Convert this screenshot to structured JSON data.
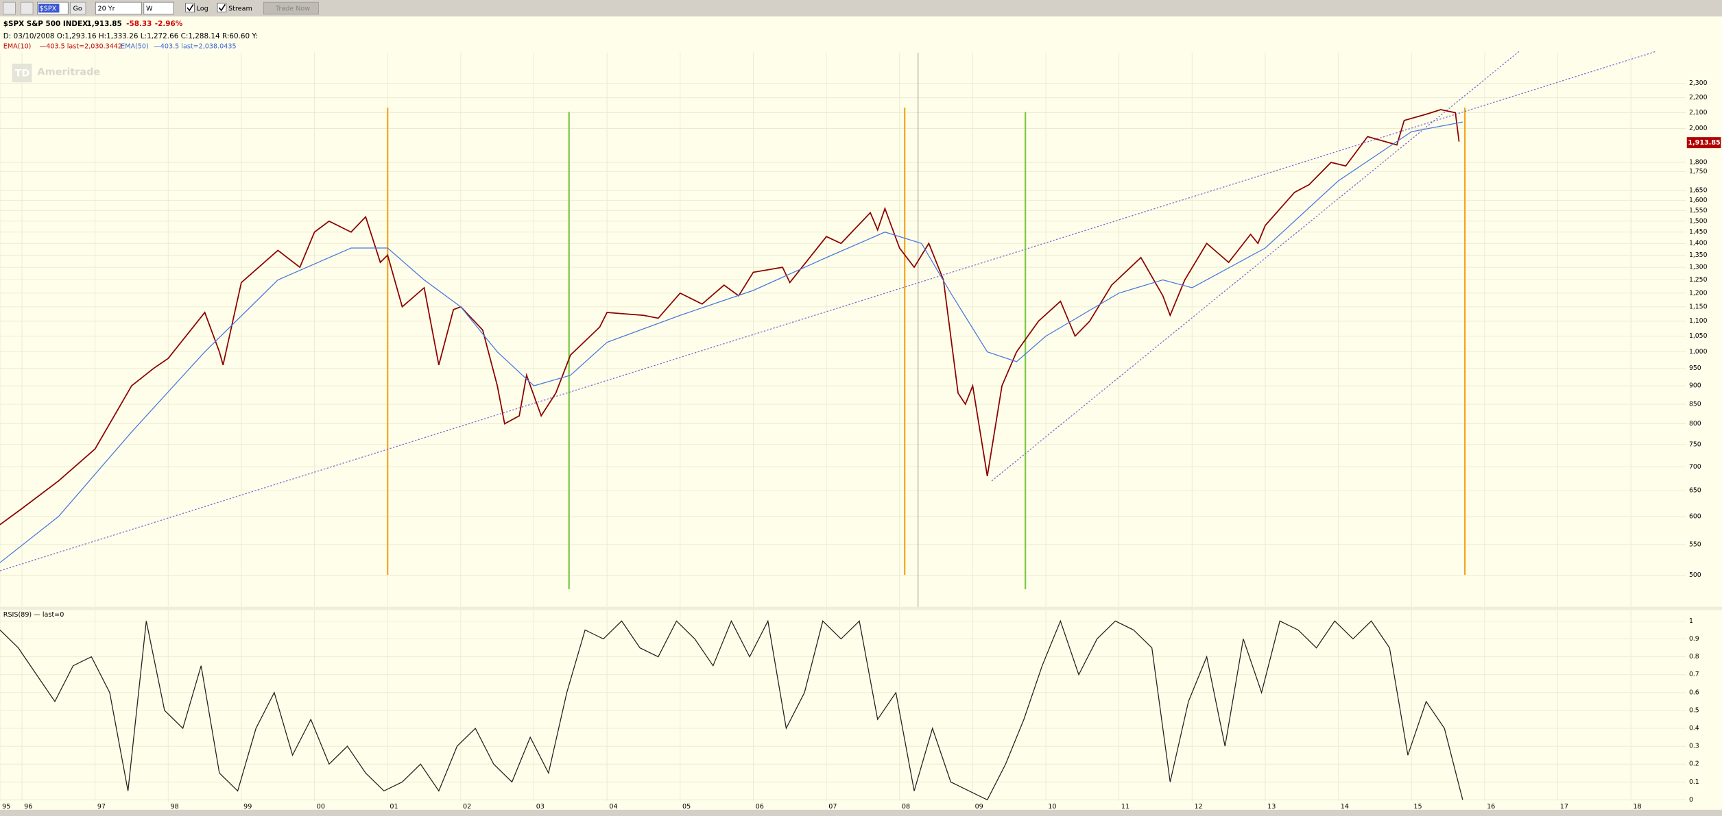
{
  "toolbar": {
    "symbol": "$SPX",
    "go": "Go",
    "period": "20 Yr",
    "interval": "W",
    "log": "Log",
    "stream": "Stream",
    "trade": "Trade Now"
  },
  "header": {
    "symbol": "$SPX S&P 500 INDEX",
    "last": "1,913.85",
    "change": "-58.33",
    "pct": "-2.96%",
    "ohlc": "D: 03/10/2008 O:1,293.16 H:1,333.26 L:1,272.66 C:1,288.14 R:60.60 Y:",
    "ema10": "EMA(10)",
    "ema10_info": "—403.5 last=2,030.3442",
    "ema50": "EMA(50)",
    "ema50_info": "—403.5 last=2,038.0435"
  },
  "watermark": {
    "logo": "TD",
    "name": "Ameritrade"
  },
  "chart_data": [
    {
      "type": "line",
      "log": true,
      "grid": true,
      "xlim": [
        1995.7,
        2018.75
      ],
      "ylim": [
        455,
        2530
      ],
      "yticks": [
        {
          "value": 2300,
          "label": "2,300"
        },
        {
          "value": 2200,
          "label": "2,200"
        },
        {
          "value": 2100,
          "label": "2,100"
        },
        {
          "value": 2000,
          "label": "2,000"
        },
        {
          "value": 1800,
          "label": "1,800"
        },
        {
          "value": 1750,
          "label": "1,750"
        },
        {
          "value": 1650,
          "label": "1,650"
        },
        {
          "value": 1600,
          "label": "1,600"
        },
        {
          "value": 1550,
          "label": "1,550"
        },
        {
          "value": 1500,
          "label": "1,500"
        },
        {
          "value": 1450,
          "label": "1,450"
        },
        {
          "value": 1400,
          "label": "1,400"
        },
        {
          "value": 1350,
          "label": "1,350"
        },
        {
          "value": 1300,
          "label": "1,300"
        },
        {
          "value": 1250,
          "label": "1,250"
        },
        {
          "value": 1200,
          "label": "1,200"
        },
        {
          "value": 1150,
          "label": "1,150"
        },
        {
          "value": 1100,
          "label": "1,100"
        },
        {
          "value": 1050,
          "label": "1,050"
        },
        {
          "value": 1000,
          "label": "1,000"
        },
        950,
        900,
        850,
        800,
        750,
        700,
        650,
        600,
        550,
        500
      ],
      "series": [
        {
          "color": "#8b0000",
          "x": [
            1995.7,
            1996.0,
            1996.5,
            1997.0,
            1997.5,
            1997.8,
            1998.0,
            1998.5,
            1998.7,
            1998.75,
            1999.0,
            1999.5,
            1999.8,
            2000.0,
            2000.2,
            2000.5,
            2000.7,
            2000.9,
            2001.0,
            2001.2,
            2001.5,
            2001.7,
            2001.9,
            2002.0,
            2002.3,
            2002.5,
            2002.6,
            2002.8,
            2002.9,
            2003.1,
            2003.3,
            2003.5,
            2003.9,
            2004.0,
            2004.5,
            2004.7,
            2005.0,
            2005.3,
            2005.6,
            2005.8,
            2006.0,
            2006.4,
            2006.5,
            2007.0,
            2007.2,
            2007.6,
            2007.7,
            2007.8,
            2008.0,
            2008.2,
            2008.4,
            2008.6,
            2008.8,
            2008.9,
            2009.0,
            2009.2,
            2009.4,
            2009.6,
            2009.9,
            2010.2,
            2010.4,
            2010.6,
            2010.9,
            2011.3,
            2011.6,
            2011.7,
            2011.9,
            2012.2,
            2012.5,
            2012.8,
            2012.9,
            2013.0,
            2013.4,
            2013.6,
            2013.9,
            2014.1,
            2014.4,
            2014.8,
            2014.9,
            2015.2,
            2015.4,
            2015.6,
            2015.65
          ],
          "values": [
            585,
            615,
            670,
            740,
            900,
            950,
            980,
            1130,
            1000,
            960,
            1240,
            1370,
            1300,
            1450,
            1500,
            1450,
            1520,
            1320,
            1350,
            1150,
            1220,
            960,
            1140,
            1150,
            1070,
            900,
            800,
            820,
            930,
            820,
            880,
            990,
            1080,
            1130,
            1120,
            1110,
            1200,
            1160,
            1230,
            1190,
            1280,
            1300,
            1240,
            1430,
            1400,
            1540,
            1460,
            1560,
            1380,
            1300,
            1400,
            1250,
            880,
            850,
            900,
            680,
            900,
            1000,
            1100,
            1170,
            1050,
            1100,
            1230,
            1340,
            1190,
            1120,
            1250,
            1400,
            1320,
            1440,
            1400,
            1480,
            1640,
            1680,
            1800,
            1780,
            1950,
            1900,
            2050,
            2090,
            2120,
            2100,
            1920
          ]
        },
        {
          "color": "#4a78e0",
          "x": [
            1995.7,
            1996.5,
            1997.5,
            1998.5,
            1999.5,
            2000.5,
            2001.0,
            2001.5,
            2002.0,
            2002.5,
            2003.0,
            2003.5,
            2004.0,
            2005.0,
            2006.0,
            2007.0,
            2007.8,
            2008.3,
            2008.7,
            2009.2,
            2009.6,
            2010.0,
            2011.0,
            2011.6,
            2012.0,
            2013.0,
            2014.0,
            2015.0,
            2015.7
          ],
          "values": [
            520,
            600,
            780,
            1000,
            1250,
            1380,
            1380,
            1250,
            1150,
            1000,
            900,
            930,
            1030,
            1120,
            1210,
            1340,
            1450,
            1400,
            1200,
            1000,
            970,
            1050,
            1200,
            1250,
            1220,
            1380,
            1700,
            1980,
            2040
          ]
        }
      ],
      "trendlines": [
        {
          "x": [
            1995.7,
            2018.34
          ],
          "values": [
            507,
            2539
          ]
        },
        {
          "x": [
            2009.26,
            2016.47
          ],
          "values": [
            670,
            2539
          ]
        }
      ],
      "vlines": [
        {
          "x": 2001.0,
          "color": "#f5a623"
        },
        {
          "x": 2003.48,
          "color": "#7ac943"
        },
        {
          "x": 2008.07,
          "color": "#f5a623"
        },
        {
          "x": 2009.72,
          "color": "#7ac943"
        },
        {
          "x": 2015.73,
          "color": "#f5a623"
        }
      ],
      "last": {
        "value": 1913.85,
        "label": "1,913.85"
      }
    },
    {
      "type": "line",
      "title": "RSIS(89) — last=0",
      "xlim": [
        1995.7,
        2018.75
      ],
      "ylim": [
        0,
        1
      ],
      "yticks": [
        0,
        0.1,
        0.2,
        0.3,
        0.4,
        0.5,
        0.6,
        0.7,
        0.8,
        0.9,
        1
      ],
      "xticks": [
        {
          "value": 1995.7,
          "label": "95"
        },
        {
          "value": 1996,
          "label": "96"
        },
        {
          "value": 1997,
          "label": "97"
        },
        {
          "value": 1998,
          "label": "98"
        },
        {
          "value": 1999,
          "label": "99"
        },
        {
          "value": 2000,
          "label": "00"
        },
        {
          "value": 2001,
          "label": "01"
        },
        {
          "value": 2002,
          "label": "02"
        },
        {
          "value": 2003,
          "label": "03"
        },
        {
          "value": 2004,
          "label": "04"
        },
        {
          "value": 2005,
          "label": "05"
        },
        {
          "value": 2006,
          "label": "06"
        },
        {
          "value": 2007,
          "label": "07"
        },
        {
          "value": 2008,
          "label": "08"
        },
        {
          "value": 2009,
          "label": "09"
        },
        {
          "value": 2010,
          "label": "10"
        },
        {
          "value": 2011,
          "label": "11"
        },
        {
          "value": 2012,
          "label": "12"
        },
        {
          "value": 2013,
          "label": "13"
        },
        {
          "value": 2014,
          "label": "14"
        },
        {
          "value": 2015,
          "label": "15"
        },
        {
          "value": 2016,
          "label": "16"
        },
        {
          "value": 2017,
          "label": "17"
        },
        {
          "value": 2018,
          "label": "18"
        }
      ],
      "series": [
        {
          "color": "#222222",
          "x": [
            1995.7,
            1995.95,
            1996.2,
            1996.45,
            1996.7,
            1996.95,
            1997.2,
            1997.45,
            1997.7,
            1997.95,
            1998.2,
            1998.45,
            1998.7,
            1998.95,
            1999.2,
            1999.45,
            1999.7,
            1999.95,
            2000.2,
            2000.45,
            2000.7,
            2000.95,
            2001.2,
            2001.45,
            2001.7,
            2001.95,
            2002.2,
            2002.45,
            2002.7,
            2002.95,
            2003.2,
            2003.45,
            2003.7,
            2003.95,
            2004.2,
            2004.45,
            2004.7,
            2004.95,
            2005.2,
            2005.45,
            2005.7,
            2005.95,
            2006.2,
            2006.45,
            2006.7,
            2006.95,
            2007.2,
            2007.45,
            2007.7,
            2007.95,
            2008.2,
            2008.45,
            2008.7,
            2008.95,
            2009.2,
            2009.45,
            2009.7,
            2009.95,
            2010.2,
            2010.45,
            2010.7,
            2010.95,
            2011.2,
            2011.45,
            2011.7,
            2011.95,
            2012.2,
            2012.45,
            2012.7,
            2012.95,
            2013.2,
            2013.45,
            2013.7,
            2013.95,
            2014.2,
            2014.45,
            2014.7,
            2014.95,
            2015.2,
            2015.45,
            2015.7
          ],
          "values": [
            0.95,
            0.85,
            0.7,
            0.55,
            0.75,
            0.8,
            0.6,
            0.05,
            1.0,
            0.5,
            0.4,
            0.75,
            0.15,
            0.05,
            0.4,
            0.6,
            0.25,
            0.45,
            0.2,
            0.3,
            0.15,
            0.05,
            0.1,
            0.2,
            0.05,
            0.3,
            0.4,
            0.2,
            0.1,
            0.35,
            0.15,
            0.6,
            0.95,
            0.9,
            1.0,
            0.85,
            0.8,
            1.0,
            0.9,
            0.75,
            1.0,
            0.8,
            1.0,
            0.4,
            0.6,
            1.0,
            0.9,
            1.0,
            0.45,
            0.6,
            0.05,
            0.4,
            0.1,
            0.05,
            0.0,
            0.2,
            0.45,
            0.75,
            1.0,
            0.7,
            0.9,
            1.0,
            0.95,
            0.85,
            0.1,
            0.55,
            0.8,
            0.3,
            0.9,
            0.6,
            1.0,
            0.95,
            0.85,
            1.0,
            0.9,
            1.0,
            0.85,
            0.25,
            0.55,
            0.4,
            0.0
          ]
        }
      ]
    }
  ]
}
